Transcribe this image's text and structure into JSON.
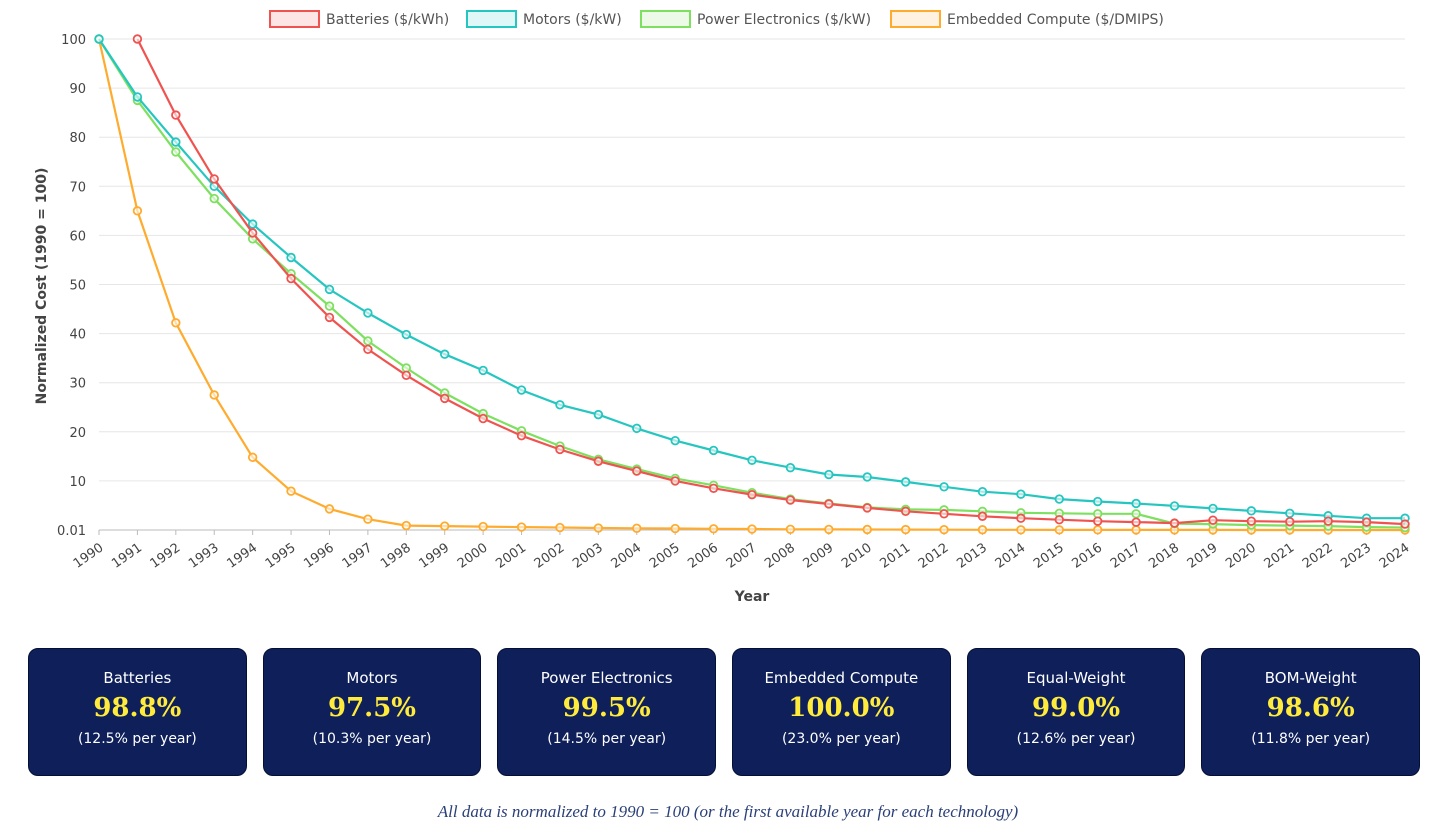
{
  "chart_data": {
    "type": "line",
    "xlabel": "Year",
    "ylabel": "Normalized Cost (1990 = 100)",
    "y_ticks": [
      "0.01",
      "10",
      "20",
      "30",
      "40",
      "50",
      "60",
      "70",
      "80",
      "90",
      "100"
    ],
    "ylim": [
      0,
      100
    ],
    "x": [
      "1990",
      "1991",
      "1992",
      "1993",
      "1994",
      "1995",
      "1996",
      "1997",
      "1998",
      "1999",
      "2000",
      "2001",
      "2002",
      "2003",
      "2004",
      "2005",
      "2006",
      "2007",
      "2008",
      "2009",
      "2010",
      "2011",
      "2012",
      "2013",
      "2014",
      "2015",
      "2016",
      "2017",
      "2018",
      "2019",
      "2020",
      "2021",
      "2022",
      "2023",
      "2024"
    ],
    "legend_position": "top",
    "series": [
      {
        "name": "Batteries ($/kWh)",
        "color": "#ef5350",
        "values": [
          null,
          100,
          84.5,
          71.5,
          60.5,
          51.2,
          43.3,
          36.8,
          31.5,
          26.8,
          22.7,
          19.2,
          16.4,
          14.0,
          12.0,
          10.0,
          8.5,
          7.2,
          6.1,
          5.3,
          4.5,
          3.8,
          3.3,
          2.8,
          2.4,
          2.1,
          1.8,
          1.6,
          1.4,
          2.0,
          1.8,
          1.7,
          1.8,
          1.6,
          1.2
        ]
      },
      {
        "name": "Motors ($/kW)",
        "color": "#26c6c0",
        "values": [
          100,
          88.2,
          79.0,
          70.0,
          62.3,
          55.5,
          49.0,
          44.2,
          39.8,
          35.8,
          32.5,
          28.5,
          25.5,
          23.5,
          20.7,
          18.2,
          16.2,
          14.2,
          12.7,
          11.3,
          10.8,
          9.8,
          8.8,
          7.8,
          7.3,
          6.3,
          5.8,
          5.4,
          4.9,
          4.4,
          3.9,
          3.4,
          2.9,
          2.4,
          2.4
        ]
      },
      {
        "name": "Power Electronics ($/kW)",
        "color": "#7ee060",
        "values": [
          100,
          87.5,
          77.0,
          67.5,
          59.3,
          52.2,
          45.6,
          38.5,
          33.0,
          27.9,
          23.7,
          20.2,
          17.1,
          14.4,
          12.4,
          10.5,
          9.1,
          7.6,
          6.3,
          5.4,
          4.6,
          4.2,
          4.1,
          3.8,
          3.5,
          3.4,
          3.3,
          3.3,
          1.3,
          1.2,
          1.0,
          0.9,
          0.8,
          0.6,
          0.5
        ]
      },
      {
        "name": "Embedded Compute ($/DMIPS)",
        "color": "#ffab2e",
        "values": [
          100,
          65.0,
          42.2,
          27.5,
          14.8,
          7.9,
          4.3,
          2.2,
          0.9,
          0.8,
          0.7,
          0.6,
          0.5,
          0.4,
          0.35,
          0.3,
          0.25,
          0.2,
          0.15,
          0.12,
          0.1,
          0.08,
          0.06,
          0.05,
          0.04,
          0.03,
          0.03,
          0.02,
          0.02,
          0.02,
          0.01,
          0.01,
          0.01,
          0.01,
          0.01
        ]
      }
    ]
  },
  "cards": [
    {
      "title": "Batteries",
      "value": "98.8%",
      "rate": "(12.5% per year)"
    },
    {
      "title": "Motors",
      "value": "97.5%",
      "rate": "(10.3% per year)"
    },
    {
      "title": "Power Electronics",
      "value": "99.5%",
      "rate": "(14.5% per year)"
    },
    {
      "title": "Embedded Compute",
      "value": "100.0%",
      "rate": "(23.0% per year)"
    },
    {
      "title": "Equal-Weight",
      "value": "99.0%",
      "rate": "(12.6% per year)"
    },
    {
      "title": "BOM-Weight",
      "value": "98.6%",
      "rate": "(11.8% per year)"
    }
  ],
  "footnote": "All data is normalized to 1990 = 100 (or the first available year for each technology)"
}
